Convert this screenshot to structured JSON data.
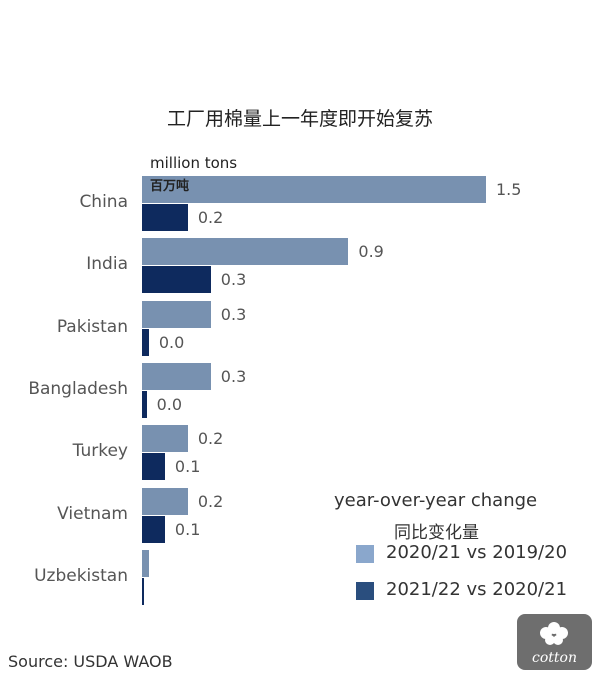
{
  "chart_data": {
    "type": "bar",
    "orientation": "horizontal",
    "title": "工厂用棉量上一年度即开始复苏",
    "unit": "million tons",
    "unit_cn": "百万吨",
    "categories": [
      "China",
      "India",
      "Pakistan",
      "Bangladesh",
      "Turkey",
      "Vietnam",
      "Uzbekistan"
    ],
    "series": [
      {
        "name": "2020/21 vs 2019/20",
        "values": [
          1.5,
          0.9,
          0.3,
          0.3,
          0.2,
          0.2,
          0.03
        ],
        "labels": [
          "1.5",
          "0.9",
          "0.3",
          "0.3",
          "0.2",
          "0.2",
          ""
        ]
      },
      {
        "name": "2021/22 vs 2020/21",
        "values": [
          0.2,
          0.3,
          0.03,
          0.02,
          0.1,
          0.1,
          0.01
        ],
        "labels": [
          "0.2",
          "0.3",
          "0.0",
          "0.0",
          "0.1",
          "0.1",
          ""
        ]
      }
    ],
    "xlim": [
      0,
      1.5
    ],
    "grid": false,
    "legend": {
      "title": "year-over-year change",
      "title_cn": "同比变化量",
      "placement": "bottom-right"
    },
    "source": "Source: USDA WAOB"
  },
  "colors": {
    "series1": "#7891b0",
    "series2": "#0e2a5e",
    "legend1": "#8aa7cc",
    "legend2": "#2a4e7e",
    "logo_bg": "#6e6e6e"
  },
  "logo": {
    "name": "cotton-logo",
    "text": "cotton"
  }
}
